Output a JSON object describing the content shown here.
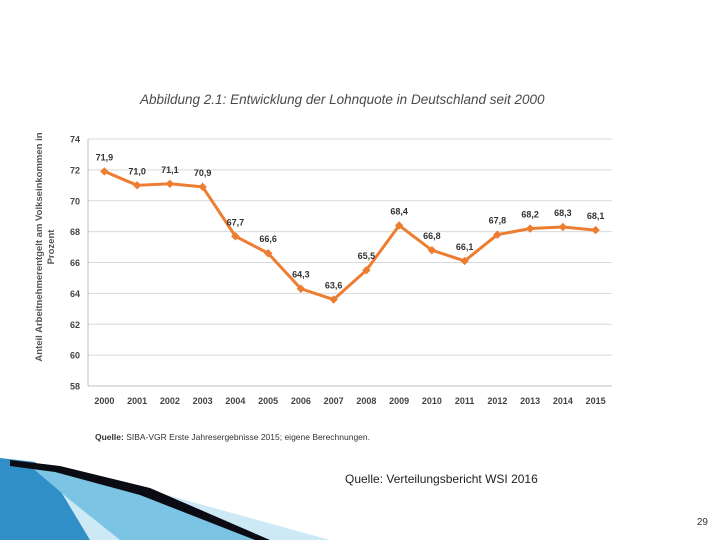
{
  "chart_data": {
    "type": "line",
    "title": "Abbildung 2.1: Entwicklung der Lohnquote in Deutschland seit 2000",
    "xlabel": "",
    "ylabel": "Anteil Arbeitnehmerentgelt am Volkseinkommen in Prozent",
    "categories": [
      "2000",
      "2001",
      "2002",
      "2003",
      "2004",
      "2005",
      "2006",
      "2007",
      "2008",
      "2009",
      "2010",
      "2011",
      "2012",
      "2013",
      "2014",
      "2015"
    ],
    "series": [
      {
        "name": "Lohnquote",
        "values": [
          71.9,
          71.0,
          71.1,
          70.9,
          67.7,
          66.6,
          64.3,
          63.6,
          65.5,
          68.4,
          66.8,
          66.1,
          67.8,
          68.2,
          68.3,
          68.1
        ],
        "labels": [
          "71,9",
          "71,0",
          "71,1",
          "70,9",
          "67,7",
          "66,6",
          "64,3",
          "63,6",
          "65,5",
          "68,4",
          "66,8",
          "66,1",
          "67,8",
          "68,2",
          "68,3",
          "68,1"
        ],
        "color": "#ED7D31"
      }
    ],
    "ylim": [
      58,
      74
    ],
    "yticks": [
      58,
      60,
      62,
      64,
      66,
      68,
      70,
      72,
      74
    ],
    "grid": true
  },
  "slide": {
    "source_inner_label": "Quelle:",
    "source_inner_text": "SIBA-VGR Erste Jahresergebnisse 2015; eigene Berechnungen.",
    "source_main": "Quelle: Verteilungsbericht WSI 2016",
    "page_number": "29"
  },
  "colors": {
    "line": "#ED7D31",
    "grid": "#d9d9d9",
    "decor_dark": "#0b0b14",
    "decor_blue": "#2f8fc6",
    "decor_light": "#9fd3ea"
  }
}
